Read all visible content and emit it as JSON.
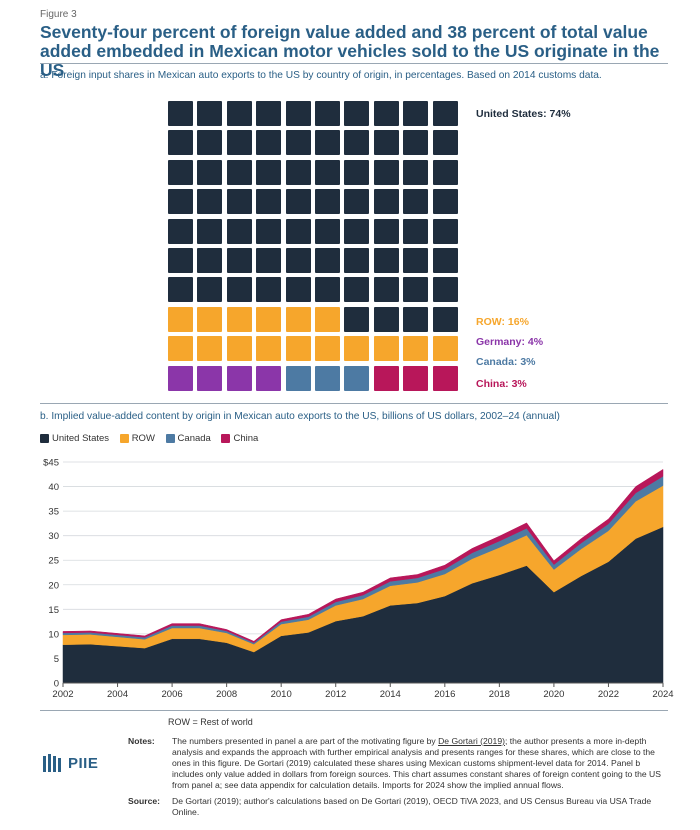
{
  "figure_label": "Figure 3",
  "title": "Seventy-four percent of foreign value added and 38 percent of total value added embedded in Mexican motor vehicles sold to the US originate in the US",
  "colors": {
    "us": "#1f2d3d",
    "row": "#f6a62c",
    "germany": "#8b36a9",
    "canada": "#4d7aa3",
    "china": "#b8175a",
    "title": "#2a5f86"
  },
  "panel_a": {
    "heading": "a. Foreign input shares in Mexican auto exports to the US by country of origin, in percentages. Based on 2014 customs data.",
    "labels": {
      "us": "United States: 74%",
      "row": "ROW: 16%",
      "germany": "Germany: 4%",
      "canada": "Canada: 3%",
      "china": "China: 3%"
    }
  },
  "panel_b": {
    "heading": "b. Implied value-added content by origin in Mexican auto exports to the US, billions of US dollars, 2002–24 (annual)",
    "legend": [
      "United States",
      "ROW",
      "Canada",
      "China"
    ],
    "y_unit_prefix": "$"
  },
  "chart_data": [
    {
      "type": "waffle",
      "title": "Foreign input shares in Mexican auto exports to the US by country of origin, in percentages",
      "units": "percent",
      "categories": [
        "United States",
        "ROW",
        "Germany",
        "Canada",
        "China"
      ],
      "values": [
        74,
        16,
        4,
        3,
        3
      ]
    },
    {
      "type": "area",
      "title": "Implied value-added content by origin in Mexican auto exports to the US, billions of US dollars, 2002–24 (annual)",
      "stacked": true,
      "x": [
        2002,
        2003,
        2004,
        2005,
        2006,
        2007,
        2008,
        2009,
        2010,
        2011,
        2012,
        2013,
        2014,
        2015,
        2016,
        2017,
        2018,
        2019,
        2020,
        2021,
        2022,
        2023,
        2024
      ],
      "series": [
        {
          "name": "United States",
          "values": [
            7.8,
            7.9,
            7.5,
            7.1,
            9.0,
            9.0,
            8.2,
            6.3,
            9.6,
            10.3,
            12.6,
            13.6,
            15.8,
            16.3,
            17.7,
            20.3,
            22.0,
            23.9,
            18.5,
            21.8,
            24.7,
            29.4,
            31.8
          ]
        },
        {
          "name": "ROW",
          "values": [
            2.0,
            2.0,
            1.9,
            1.8,
            2.2,
            2.2,
            2.0,
            1.6,
            2.4,
            2.6,
            3.2,
            3.5,
            4.0,
            4.2,
            4.5,
            5.0,
            5.6,
            6.2,
            4.6,
            5.5,
            6.3,
            7.6,
            8.4
          ]
        },
        {
          "name": "Canada",
          "values": [
            0.4,
            0.4,
            0.4,
            0.4,
            0.5,
            0.5,
            0.4,
            0.3,
            0.5,
            0.6,
            0.7,
            0.8,
            0.9,
            0.9,
            1.0,
            1.2,
            1.3,
            1.4,
            1.0,
            1.2,
            1.4,
            1.7,
            1.9
          ]
        },
        {
          "name": "China",
          "values": [
            0.3,
            0.3,
            0.3,
            0.3,
            0.4,
            0.4,
            0.3,
            0.3,
            0.4,
            0.5,
            0.6,
            0.6,
            0.7,
            0.7,
            0.8,
            0.9,
            1.0,
            1.1,
            0.8,
            0.9,
            1.0,
            1.3,
            1.4
          ]
        }
      ],
      "xlim": [
        2002,
        2024
      ],
      "ylim": [
        0,
        45
      ],
      "xticks": [
        2002,
        2004,
        2006,
        2008,
        2010,
        2012,
        2014,
        2016,
        2018,
        2020,
        2022,
        2024
      ],
      "yticks": [
        0,
        5,
        10,
        15,
        20,
        25,
        30,
        35,
        40,
        45
      ],
      "ylabel": "billions of US dollars",
      "grid": true
    }
  ],
  "row_definition": "ROW = Rest of world",
  "notes": {
    "label": "Notes:",
    "text_before_link": "The numbers presented in panel a are part of the motivating figure by ",
    "link_text": "De Gortari (2019)",
    "text_after_link": "; the author presents a more in-depth analysis and expands the approach with further empirical analysis and presents ranges for these shares, which are close to the ones in this figure. De Gortari (2019) calculated these shares using Mexican customs shipment-level data for 2014. Panel b includes only value added in dollars from foreign sources. This chart assumes constant shares of foreign content going to the US from panel a; see data appendix for calculation details. Imports for 2024 show the implied annual flows."
  },
  "source": {
    "label": "Source:",
    "text": "De Gortari (2019); author's calculations based on De Gortari (2019), OECD TiVA 2023, and US Census Bureau via USA Trade Online."
  },
  "logo": {
    "text": "PIIE"
  }
}
